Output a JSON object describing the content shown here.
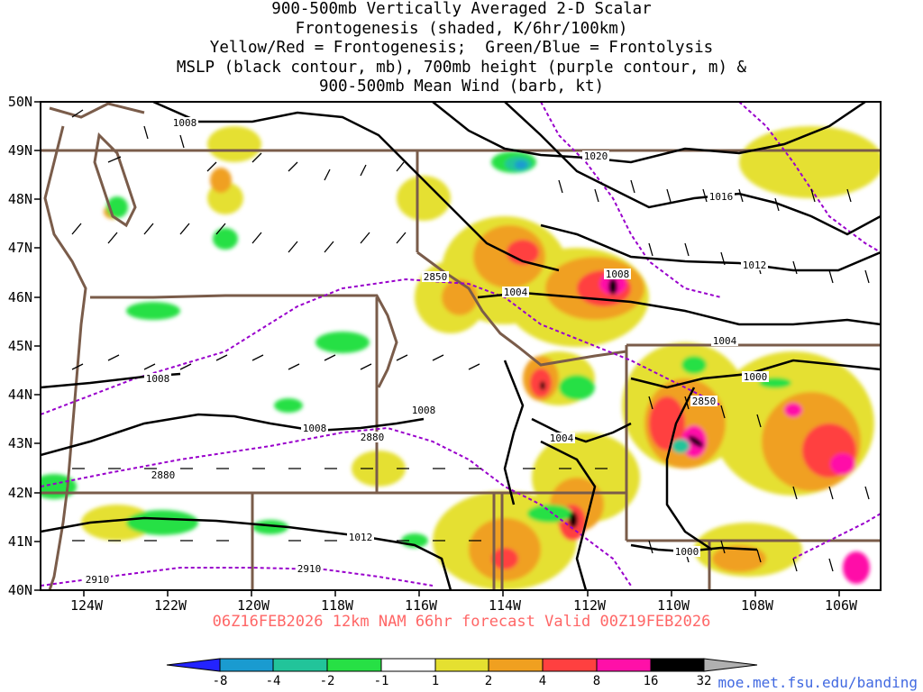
{
  "title_lines": [
    "900-500mb Vertically Averaged 2-D Scalar",
    "Frontogenesis (shaded, K/6hr/100km)",
    "Yellow/Red = Frontogenesis;  Green/Blue = Frontolysis",
    "MSLP (black contour, mb), 700mb height (purple contour, m) &",
    "900-500mb Mean Wind (barb, kt)"
  ],
  "subtitle": "06Z16FEB2026 12km NAM 66hr forecast Valid 00Z19FEB2026",
  "website": "moe.met.fsu.edu/banding",
  "map": {
    "lon_range": [
      -125,
      -105
    ],
    "lat_range": [
      40,
      50
    ],
    "lat_labels": [
      "50N",
      "49N",
      "48N",
      "47N",
      "46N",
      "45N",
      "44N",
      "43N",
      "42N",
      "41N",
      "40N"
    ],
    "lon_labels": [
      "124W",
      "122W",
      "120W",
      "118W",
      "116W",
      "114W",
      "112W",
      "110W",
      "108W",
      "106W"
    ],
    "mslp_labels": [
      "1008",
      "1020",
      "1016",
      "1012",
      "1008",
      "1004",
      "1004",
      "1000",
      "1008",
      "1008",
      "1008",
      "1004",
      "1012",
      "1000"
    ],
    "height_labels": [
      "2850",
      "2850",
      "2880",
      "2880",
      "2910",
      "2910"
    ]
  },
  "colorbar": {
    "tick_labels": [
      "-8",
      "-4",
      "-2",
      "-1",
      "1",
      "2",
      "4",
      "8",
      "16",
      "32"
    ],
    "colors": [
      "#2323ff",
      "#1a9bd0",
      "#22c49a",
      "#27e045",
      "#ffffff",
      "#e5e030",
      "#f0a020",
      "#ff4040",
      "#ff10a8",
      "#000000",
      "#b0b0b0"
    ]
  },
  "colors": {
    "state_lines": "#7a5c4a",
    "mslp": "#000000",
    "heights": "#9900cc",
    "subtitle": "#ff6666",
    "website": "#4169e1"
  }
}
